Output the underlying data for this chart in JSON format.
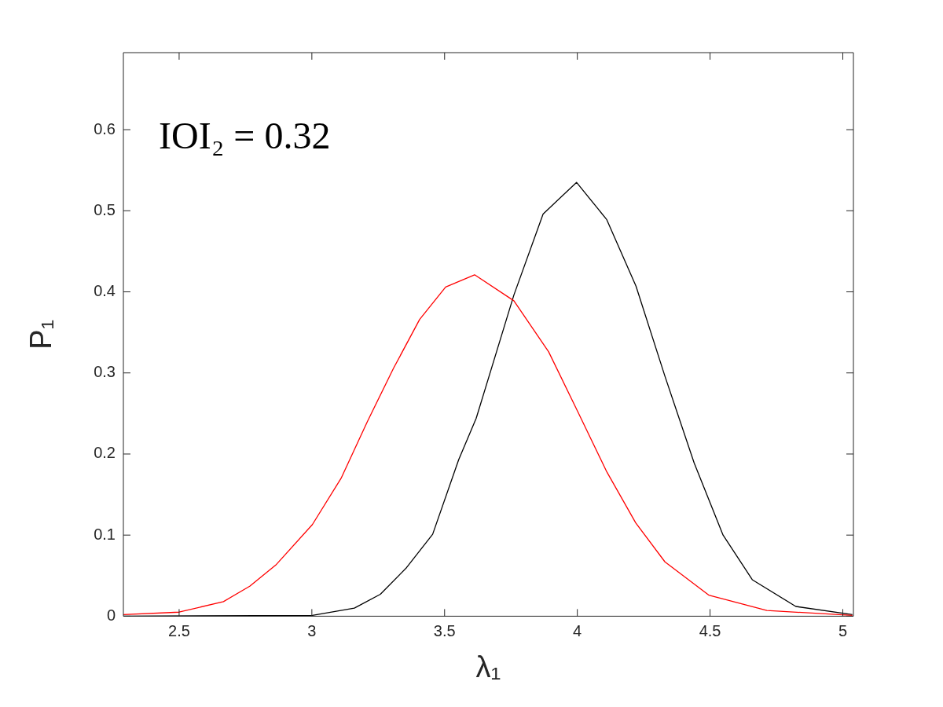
{
  "chart_data": {
    "type": "line",
    "xlabel": "λ₁",
    "ylabel": "P₁",
    "annotations": [
      "IOI₂ = 0.32"
    ],
    "xlim": [
      2.29,
      5.04
    ],
    "ylim": [
      0,
      0.695
    ],
    "xticks": [
      2.5,
      3,
      3.5,
      4,
      4.5,
      5
    ],
    "yticks": [
      0,
      0.1,
      0.2,
      0.3,
      0.4,
      0.5,
      0.6
    ],
    "grid": false,
    "legend": false,
    "marker": "none",
    "line_style": "solid",
    "series": [
      {
        "color": "#ff0000",
        "x": [
          2.29,
          2.5,
          2.667,
          2.766,
          2.864,
          3.002,
          3.11,
          3.209,
          3.308,
          3.406,
          3.504,
          3.613,
          3.761,
          3.892,
          4.002,
          4.111,
          4.22,
          4.33,
          4.495,
          4.714,
          5.036
        ],
        "values": [
          0.002,
          0.005,
          0.018,
          0.037,
          0.063,
          0.113,
          0.17,
          0.24,
          0.306,
          0.366,
          0.406,
          0.421,
          0.389,
          0.326,
          0.252,
          0.178,
          0.115,
          0.067,
          0.026,
          0.007,
          0.001
        ]
      },
      {
        "color": "#000000",
        "x": [
          2.29,
          3.002,
          3.16,
          3.258,
          3.357,
          3.455,
          3.553,
          3.619,
          3.761,
          3.871,
          3.997,
          4.111,
          4.221,
          4.33,
          4.44,
          4.549,
          4.659,
          4.823,
          5.036
        ],
        "values": [
          0,
          0.001,
          0.01,
          0.027,
          0.06,
          0.101,
          0.193,
          0.244,
          0.396,
          0.496,
          0.535,
          0.489,
          0.407,
          0.296,
          0.189,
          0.1,
          0.045,
          0.012,
          0.002
        ]
      }
    ]
  }
}
